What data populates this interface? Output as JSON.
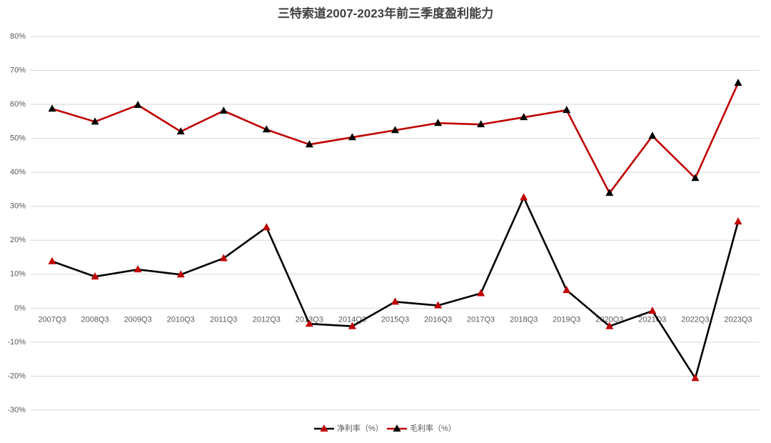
{
  "chart_data": {
    "type": "line",
    "title": "三特索道2007-2023年前三季度盈利能力",
    "categories": [
      "2007Q3",
      "2008Q3",
      "2009Q3",
      "2010Q3",
      "2011Q3",
      "2012Q3",
      "2013Q3",
      "2014Q3",
      "2015Q3",
      "2016Q3",
      "2017Q3",
      "2018Q3",
      "2019Q3",
      "2020Q3",
      "2021Q3",
      "2022Q3",
      "2023Q3"
    ],
    "series": [
      {
        "name": "净利率（%）",
        "color": "#000000",
        "marker_color": "#c00000",
        "values": [
          13.8,
          9.3,
          11.4,
          9.9,
          14.7,
          23.8,
          -4.6,
          -5.3,
          1.9,
          0.8,
          4.4,
          32.6,
          5.3,
          -5.3,
          -0.8,
          -20.6,
          25.5
        ]
      },
      {
        "name": "毛利率（%）",
        "color": "#c00000",
        "marker_color": "#000000",
        "values": [
          58.7,
          54.9,
          59.8,
          52.0,
          58.1,
          52.6,
          48.2,
          50.3,
          52.4,
          54.5,
          54.1,
          56.2,
          58.3,
          33.9,
          50.7,
          38.3,
          66.3
        ]
      }
    ],
    "ylim": [
      -30,
      80
    ],
    "yticks": [
      {
        "value": -30,
        "label": "-30%"
      },
      {
        "value": -20,
        "label": "-20%"
      },
      {
        "value": -10,
        "label": "-10%"
      },
      {
        "value": 0,
        "label": "0%"
      },
      {
        "value": 10,
        "label": "10%"
      },
      {
        "value": 20,
        "label": "20%"
      },
      {
        "value": 30,
        "label": "30%"
      },
      {
        "value": 40,
        "label": "40%"
      },
      {
        "value": 50,
        "label": "50%"
      },
      {
        "value": 60,
        "label": "60%"
      },
      {
        "value": 70,
        "label": "70%"
      },
      {
        "value": 80,
        "label": "80%"
      }
    ],
    "grid": true,
    "legend": "bottom"
  }
}
